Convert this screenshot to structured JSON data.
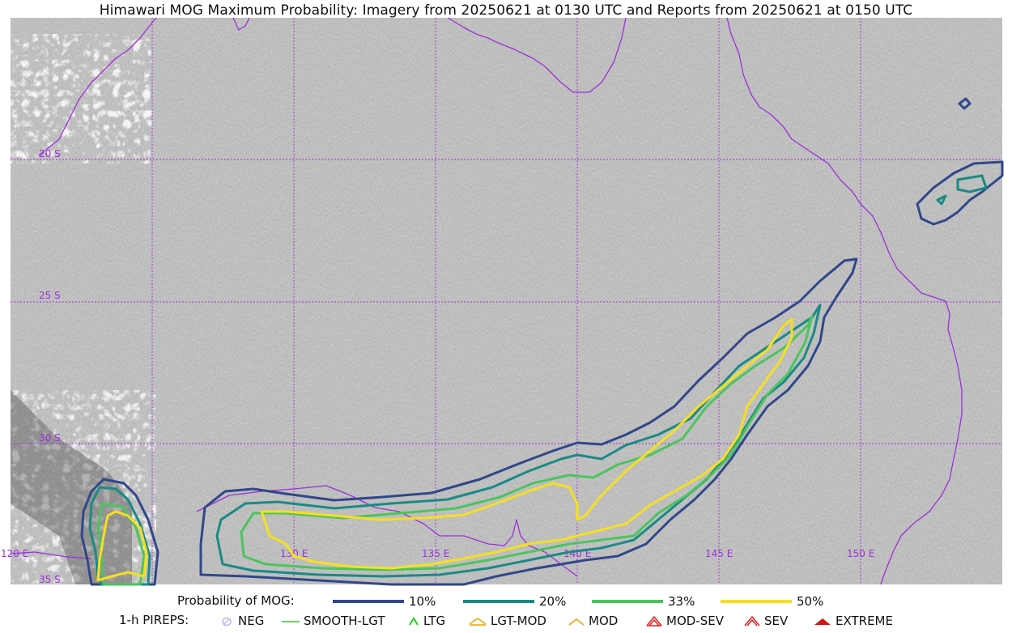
{
  "title": "Himawari MOG Maximum Probability: Imagery from 20250621 at 0130 UTC and Reports from 20250621 at 0150 UTC",
  "map": {
    "lat_labels": [
      "20 S",
      "25 S",
      "30 S",
      "35 S"
    ],
    "lon_labels": [
      "120 E",
      "130 E",
      "135 E",
      "140 E",
      "145 E",
      "150 E"
    ],
    "colors": {
      "coastline": "#9b30d9",
      "gridline": "#9b30d9",
      "p10": "#30478a",
      "p20": "#1a8a86",
      "p33": "#4cc45e",
      "p50": "#f5e020"
    }
  },
  "legend": {
    "probability_title": "Probability of MOG:",
    "probability_items": [
      {
        "label": "10%",
        "color": "#30478a"
      },
      {
        "label": "20%",
        "color": "#1a8a86"
      },
      {
        "label": "33%",
        "color": "#4cc45e"
      },
      {
        "label": "50%",
        "color": "#f5e020"
      }
    ],
    "pirep_title": "1-h PIREPS:",
    "pirep_items": [
      {
        "label": "NEG",
        "icon": "neg-pirep-icon",
        "color": "#b8b4f0"
      },
      {
        "label": "SMOOTH-LGT",
        "icon": "smooth-lgt-pirep-icon",
        "color": "#33cc33"
      },
      {
        "label": "LTG",
        "icon": "ltg-pirep-icon",
        "color": "#11dd11"
      },
      {
        "label": "LGT-MOD",
        "icon": "lgt-mod-pirep-icon",
        "color": "#f0b020"
      },
      {
        "label": "MOD",
        "icon": "mod-pirep-icon",
        "color": "#f0b020"
      },
      {
        "label": "MOD-SEV",
        "icon": "mod-sev-pirep-icon",
        "color": "#e02020"
      },
      {
        "label": "SEV",
        "icon": "sev-pirep-icon",
        "color": "#e02020"
      },
      {
        "label": "EXTREME",
        "icon": "extreme-pirep-icon",
        "color": "#e01010"
      }
    ]
  }
}
